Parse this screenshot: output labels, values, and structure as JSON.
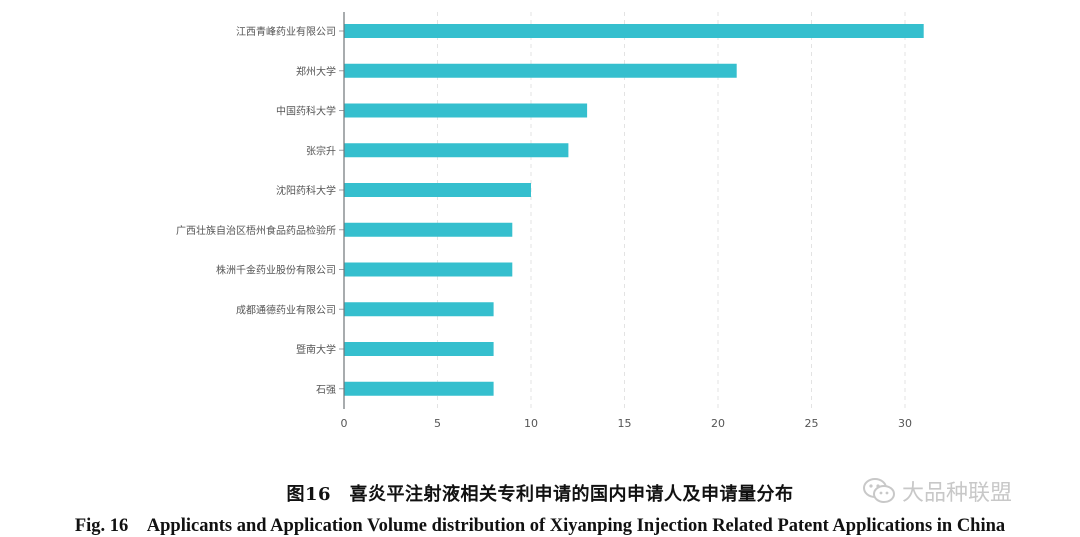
{
  "chart_data": {
    "type": "bar",
    "orientation": "horizontal",
    "categories": [
      "江西青峰药业有限公司",
      "郑州大学",
      "中国药科大学",
      "张宗升",
      "沈阳药科大学",
      "广西壮族自治区梧州食品药品检验所",
      "株洲千金药业股份有限公司",
      "成都通德药业有限公司",
      "暨南大学",
      "石强"
    ],
    "values": [
      31,
      21,
      13,
      12,
      10,
      9,
      9,
      8,
      8,
      8
    ],
    "xticks": [
      "0",
      "5",
      "10",
      "15",
      "20",
      "25",
      "30"
    ],
    "xlim": [
      0,
      32
    ],
    "grid": "vertical-dashed",
    "bar_color": "#35bfce"
  },
  "caption": {
    "cn": "图16　喜炎平注射液相关专利申请的国内申请人及申请量分布",
    "en": "Fig. 16　Applicants and Application Volume distribution of Xiyanping Injection Related Patent Applications in China"
  },
  "watermark": {
    "text": "大品种联盟",
    "icon": "wechat-icon"
  }
}
